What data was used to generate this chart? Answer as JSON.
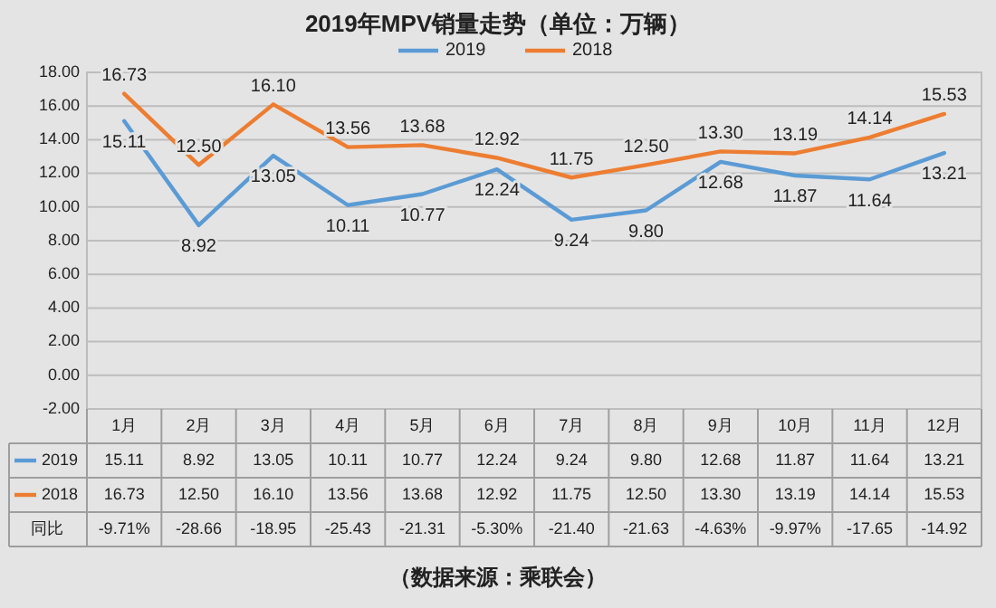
{
  "chart_data": {
    "type": "line",
    "title": "2019年MPV销量走势（单位：万辆）",
    "categories": [
      "1月",
      "2月",
      "3月",
      "4月",
      "5月",
      "6月",
      "7月",
      "8月",
      "9月",
      "10月",
      "11月",
      "12月"
    ],
    "series": [
      {
        "name": "2019",
        "color": "#5b9bd5",
        "values": [
          15.11,
          8.92,
          13.05,
          10.11,
          10.77,
          12.24,
          9.24,
          9.8,
          12.68,
          11.87,
          11.64,
          13.21
        ],
        "value_labels": [
          "15.11",
          "8.92",
          "13.05",
          "10.11",
          "10.77",
          "12.24",
          "9.24",
          "9.80",
          "12.68",
          "11.87",
          "11.64",
          "13.21"
        ]
      },
      {
        "name": "2018",
        "color": "#ed7d31",
        "values": [
          16.73,
          12.5,
          16.1,
          13.56,
          13.68,
          12.92,
          11.75,
          12.5,
          13.3,
          13.19,
          14.14,
          15.53
        ],
        "value_labels": [
          "16.73",
          "12.50",
          "16.10",
          "13.56",
          "13.68",
          "12.92",
          "11.75",
          "12.50",
          "13.30",
          "13.19",
          "14.14",
          "15.53"
        ]
      }
    ],
    "ylim": [
      -2,
      18
    ],
    "yticks": [
      {
        "value": -2,
        "label": "-2.00"
      },
      {
        "value": 0,
        "label": "0.00"
      },
      {
        "value": 2,
        "label": "2.00"
      },
      {
        "value": 4,
        "label": "4.00"
      },
      {
        "value": 6,
        "label": "6.00"
      },
      {
        "value": 8,
        "label": "8.00"
      },
      {
        "value": 10,
        "label": "10.00"
      },
      {
        "value": 12,
        "label": "12.00"
      },
      {
        "value": 14,
        "label": "14.00"
      },
      {
        "value": 16,
        "label": "16.00"
      },
      {
        "value": 18,
        "label": "18.00"
      }
    ],
    "grid": "y",
    "legend": "top",
    "marker": "none",
    "line_style": "solid",
    "annotations": [
      "同比",
      "-9.71%",
      "-28.66",
      "-18.95",
      "-25.43",
      "-21.31",
      "-5.30%",
      "-21.40",
      "-21.63",
      "-4.63%",
      "-9.97%",
      "-17.65",
      "-14.92",
      "（数据来源：乘联会）"
    ]
  }
}
